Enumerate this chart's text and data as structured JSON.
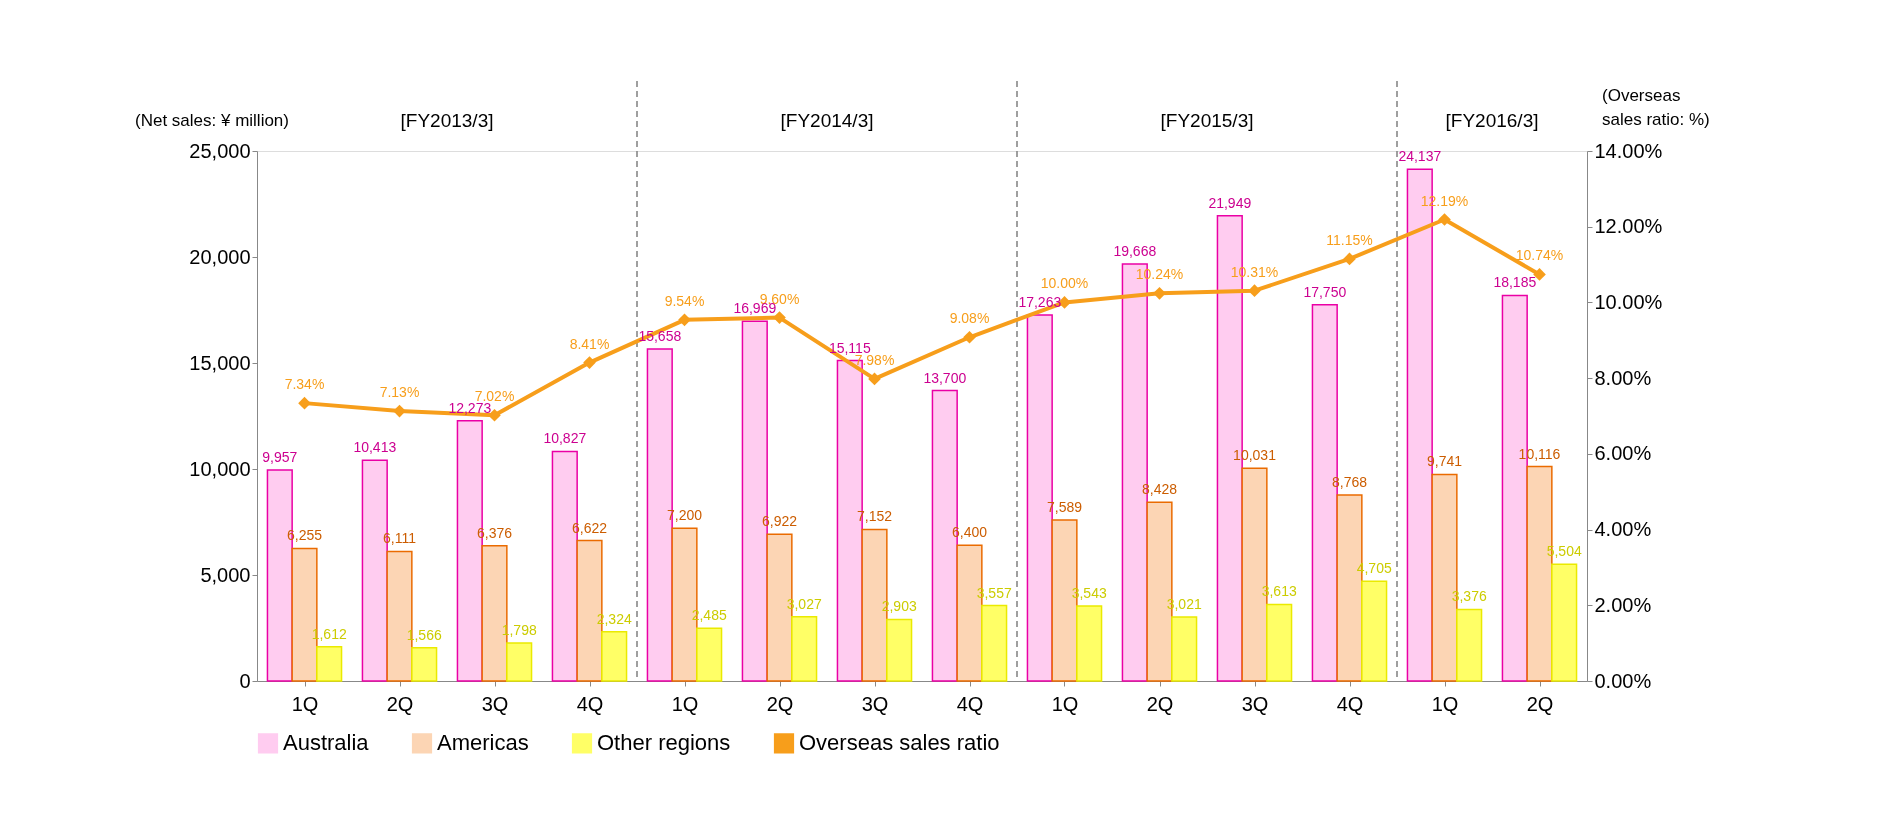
{
  "chart_data": {
    "type": "bar",
    "categories": [
      "1Q",
      "2Q",
      "3Q",
      "4Q",
      "1Q",
      "2Q",
      "3Q",
      "4Q",
      "1Q",
      "2Q",
      "3Q",
      "4Q",
      "1Q",
      "2Q"
    ],
    "series": [
      {
        "name": "Australia",
        "color": "#ffccf0",
        "values": [
          9957,
          10413,
          12273,
          10827,
          15658,
          16969,
          15115,
          13700,
          17263,
          19668,
          21949,
          17750,
          24137,
          18185
        ],
        "value_labels": [
          "9,957",
          "10,413",
          "12,273",
          "10,827",
          "15,658",
          "16,969",
          "15,115",
          "13,700",
          "17,263",
          "19,668",
          "21,949",
          "17,750",
          "24,137",
          "18,185"
        ]
      },
      {
        "name": "Americas",
        "color": "#fcd5b4",
        "values": [
          6255,
          6111,
          6376,
          6622,
          7200,
          6922,
          7152,
          6400,
          7589,
          8428,
          10031,
          8768,
          9741,
          10116
        ],
        "value_labels": [
          "6,255",
          "6,111",
          "6,376",
          "6,622",
          "7,200",
          "6,922",
          "7,152",
          "6,400",
          "7,589",
          "8,428",
          "10,031",
          "8,768",
          "9,741",
          "10,116"
        ]
      },
      {
        "name": "Other regions",
        "color": "#ffff66",
        "values": [
          1612,
          1566,
          1798,
          2324,
          2485,
          3027,
          2903,
          3557,
          3543,
          3021,
          3613,
          4705,
          3376,
          5504
        ],
        "value_labels": [
          "1,612",
          "1,566",
          "1,798",
          "2,324",
          "2,485",
          "3,027",
          "2,903",
          "3,557",
          "3,543",
          "3,021",
          "3,613",
          "4,705",
          "3,376",
          "5,504"
        ]
      },
      {
        "name": "Overseas sales ratio",
        "type": "line",
        "axis": "y2",
        "color": "#f79e1b",
        "values": [
          7.34,
          7.13,
          7.02,
          8.41,
          9.54,
          9.6,
          7.98,
          9.08,
          10.0,
          10.24,
          10.31,
          11.15,
          12.19,
          10.74
        ],
        "value_labels": [
          "7.34%",
          "7.13%",
          "7.02%",
          "8.41%",
          "9.54%",
          "9.60%",
          "7.98%",
          "9.08%",
          "10.00%",
          "10.24%",
          "10.31%",
          "11.15%",
          "12.19%",
          "10.74%"
        ]
      }
    ],
    "ylabel": "(Net sales: ¥ million)",
    "y2label": "(Overseas sales ratio: %)",
    "ylim": [
      0,
      25000
    ],
    "yticks": [
      0,
      {
        "value": 5000,
        "label": "5,000"
      },
      {
        "value": 10000,
        "label": "10,000"
      },
      {
        "value": 15000,
        "label": "15,000"
      },
      {
        "value": 20000,
        "label": "20,000"
      },
      {
        "value": 25000,
        "label": "25,000"
      }
    ],
    "y2lim": [
      0,
      14
    ],
    "y2ticks": [
      {
        "value": 0,
        "label": "0.00%"
      },
      {
        "value": 2,
        "label": "2.00%"
      },
      {
        "value": 4,
        "label": "4.00%"
      },
      {
        "value": 6,
        "label": "6.00%"
      },
      {
        "value": 8,
        "label": "8.00%"
      },
      {
        "value": 10,
        "label": "10.00%"
      },
      {
        "value": 12,
        "label": "12.00%"
      },
      {
        "value": 14,
        "label": "14.00%"
      }
    ],
    "annotations": [
      "[FY2013/3]",
      "[FY2014/3]",
      "[FY2015/3]",
      "[FY2016/3]"
    ],
    "marker": "diamond",
    "grid": false,
    "legend": "bottom"
  }
}
